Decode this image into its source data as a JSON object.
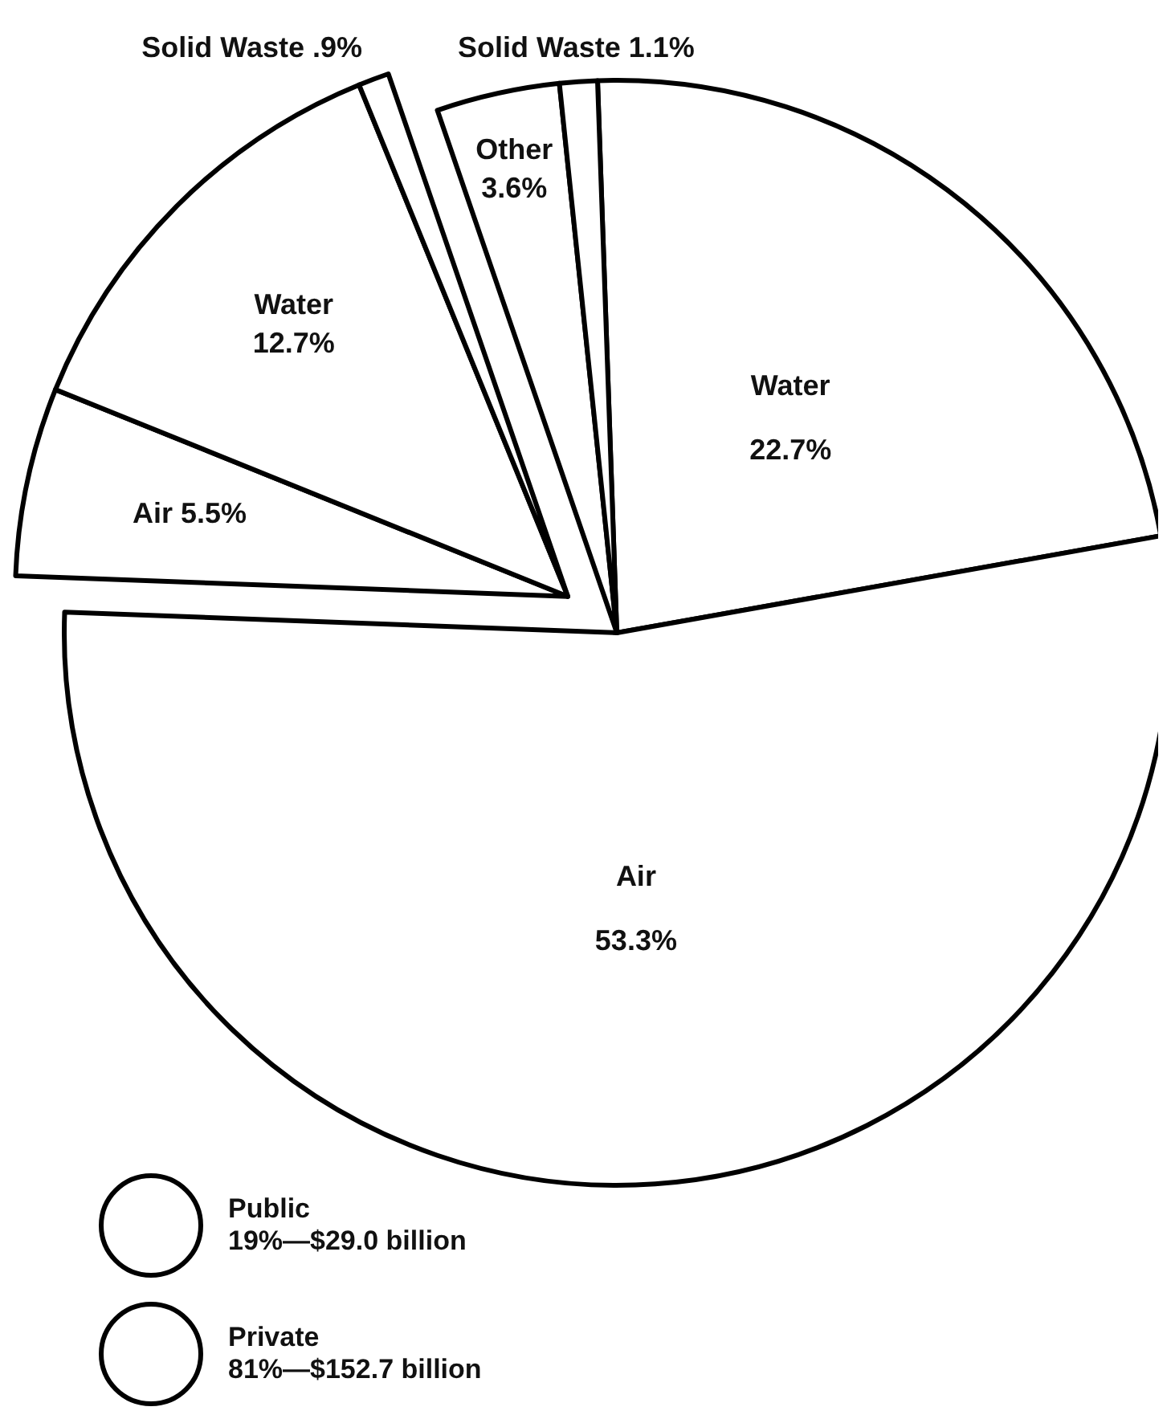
{
  "chart_data": {
    "type": "pie",
    "categories": [
      "Water",
      "Air",
      "Air",
      "Water",
      "Solid Waste",
      "Other",
      "Solid Waste"
    ],
    "values": [
      22.7,
      53.3,
      5.5,
      12.7,
      0.9,
      3.6,
      1.1
    ],
    "value_labels": [
      "22.7%",
      "53.3%",
      "5.5%",
      "12.7%",
      ".9%",
      "3.6%",
      "1.1%"
    ],
    "colors": [
      "#ffffff",
      "#ffffff",
      "#ffffff",
      "#ffffff",
      "#ffffff",
      "#ffffff",
      "#ffffff"
    ],
    "annotations": [
      "Public\n19%—$29.0 billion",
      "Private\n81%—$152.7 billion"
    ]
  }
}
